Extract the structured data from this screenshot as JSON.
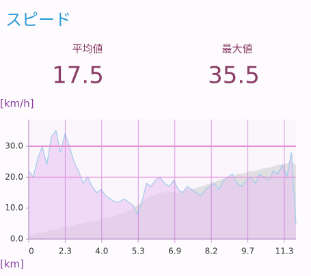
{
  "header": {
    "title": "スピード"
  },
  "stats": {
    "average_label": "平均値",
    "average_value": "17.5",
    "max_label": "最大値",
    "max_value": "35.5"
  },
  "chart_data": {
    "type": "line",
    "y_label": "[km/h]",
    "x_label": "[km]",
    "ylim": [
      0,
      38.6
    ],
    "yticks": [
      {
        "value": 0,
        "label": "0.0"
      },
      {
        "value": 10,
        "label": "10.0"
      },
      {
        "value": 20,
        "label": "20.0"
      },
      {
        "value": 30,
        "label": "30.0"
      }
    ],
    "x_tick_labels": [
      "0",
      "2.3",
      "4.0",
      "5.3",
      "6.9",
      "8.2",
      "9.7",
      "11.3"
    ],
    "highlight_lines": [
      20,
      30
    ],
    "series": [
      {
        "color": "#d9d9d9",
        "fill": true,
        "values": [
          1,
          1.5,
          2,
          2,
          2.5,
          3,
          3,
          3.5,
          4,
          4,
          4.5,
          5,
          5,
          5.5,
          6,
          6,
          6.5,
          7,
          7,
          7.5,
          8,
          8.5,
          9,
          10,
          11,
          12,
          13,
          14,
          14,
          15,
          15,
          15.5,
          15,
          15,
          15.5,
          16,
          16,
          16.5,
          17,
          17.5,
          18,
          18.5,
          19,
          19.5,
          20,
          20,
          21,
          21,
          21.5,
          22,
          22,
          22.5,
          23,
          23,
          23.5,
          24,
          24,
          24.5,
          25,
          24
        ]
      },
      {
        "color": "#9fcbe8",
        "fill": true,
        "values": [
          22,
          20,
          26,
          30,
          24,
          33,
          35,
          28,
          34,
          30,
          25,
          22,
          18,
          20,
          17,
          15,
          16,
          14,
          13,
          12,
          12,
          13,
          12,
          11,
          8,
          12,
          18,
          17,
          19,
          20,
          18,
          17,
          19,
          16,
          15,
          17,
          16,
          15,
          14,
          16,
          17,
          18,
          16,
          19,
          20,
          21,
          18,
          17,
          19,
          20,
          18,
          21,
          20,
          19,
          22,
          21,
          24,
          20,
          28,
          5
        ]
      }
    ]
  }
}
